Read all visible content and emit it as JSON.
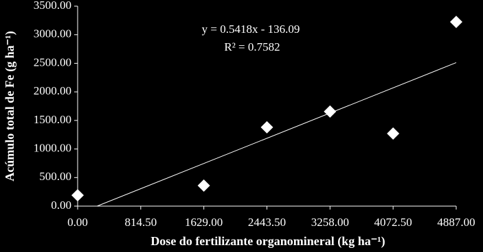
{
  "chart_data": {
    "type": "scatter",
    "x_label": "Dose do fertilizante  organomineral (kg ha⁻¹)",
    "y_label": "Acúmulo total de Fe (g ha⁻¹)",
    "x": [
      0,
      1629,
      2443.5,
      3258,
      4072.5,
      4887
    ],
    "values": [
      190,
      360,
      1380,
      1655,
      1270,
      3225
    ],
    "color": "#ffffff",
    "xlim": [
      0,
      4887
    ],
    "xticks": [
      {
        "value": 0,
        "label": "0.00"
      },
      {
        "value": 814.5,
        "label": "814.50"
      },
      {
        "value": 1629,
        "label": "1629.00"
      },
      {
        "value": 2443.5,
        "label": "2443.50"
      },
      {
        "value": 3258,
        "label": "3258.00"
      },
      {
        "value": 4072.5,
        "label": "4072.50"
      },
      {
        "value": 4887,
        "label": "4887.00"
      }
    ],
    "ylim": [
      0,
      3500
    ],
    "yticks": [
      {
        "value": 0,
        "label": "0.00"
      },
      {
        "value": 500,
        "label": "500.00"
      },
      {
        "value": 1000,
        "label": "1000.00"
      },
      {
        "value": 1500,
        "label": "1500.00"
      },
      {
        "value": 2000,
        "label": "2000.00"
      },
      {
        "value": 2500,
        "label": "2500.00"
      },
      {
        "value": 3000,
        "label": "3000.00"
      },
      {
        "value": 3500,
        "label": "3500.00"
      }
    ],
    "trendline": {
      "slope": 0.5418,
      "intercept": -136.09,
      "equation": "y = 0.5418x - 136.09",
      "r2_label": "R² = 0.7582",
      "r2": 0.7582
    }
  }
}
